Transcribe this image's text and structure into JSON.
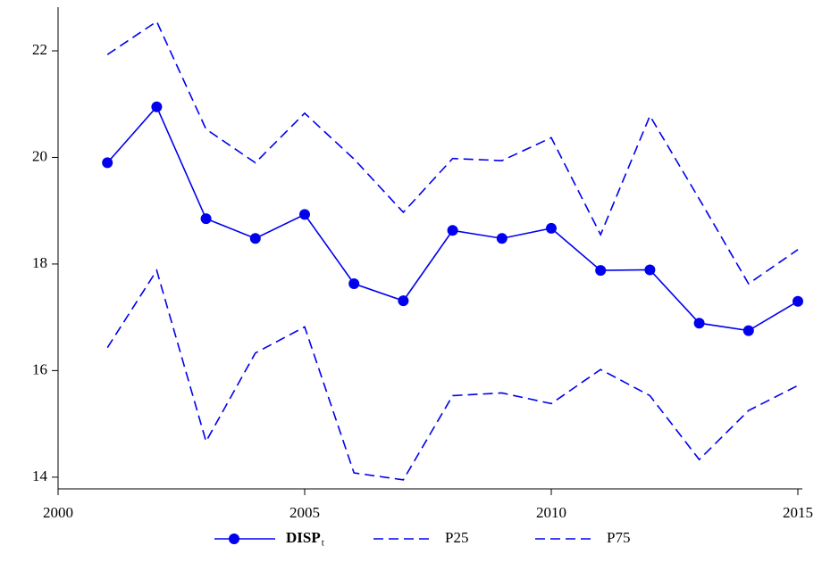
{
  "chart_data": {
    "type": "line",
    "x": [
      2001,
      2002,
      2003,
      2004,
      2005,
      2006,
      2007,
      2008,
      2009,
      2010,
      2011,
      2012,
      2013,
      2014,
      2015
    ],
    "series": [
      {
        "name": "DISP",
        "subscript": "t",
        "color": "#0000ee",
        "style": "solid",
        "markers": true,
        "values": [
          19.9,
          20.95,
          18.85,
          18.48,
          18.93,
          17.63,
          17.31,
          18.63,
          18.48,
          18.67,
          17.88,
          17.89,
          16.89,
          16.75,
          17.3
        ]
      },
      {
        "name": "P25",
        "color": "#0000ee",
        "style": "dashed",
        "markers": false,
        "values": [
          16.43,
          17.88,
          14.67,
          16.33,
          16.82,
          14.08,
          13.95,
          15.53,
          15.58,
          15.38,
          16.02,
          15.53,
          14.33,
          15.25,
          15.72
        ]
      },
      {
        "name": "P75",
        "color": "#0000ee",
        "style": "dashed",
        "markers": false,
        "values": [
          21.93,
          22.55,
          20.53,
          19.9,
          20.83,
          19.97,
          18.97,
          19.98,
          19.94,
          20.37,
          18.55,
          20.78,
          19.22,
          17.63,
          18.27
        ]
      }
    ],
    "xlim": [
      2000,
      2015
    ],
    "xticks": [
      2000,
      2005,
      2010,
      2015
    ],
    "ylim": [
      13.78,
      22.82
    ],
    "yticks": [
      14,
      16,
      18,
      20,
      22
    ],
    "legend": "bottom"
  }
}
